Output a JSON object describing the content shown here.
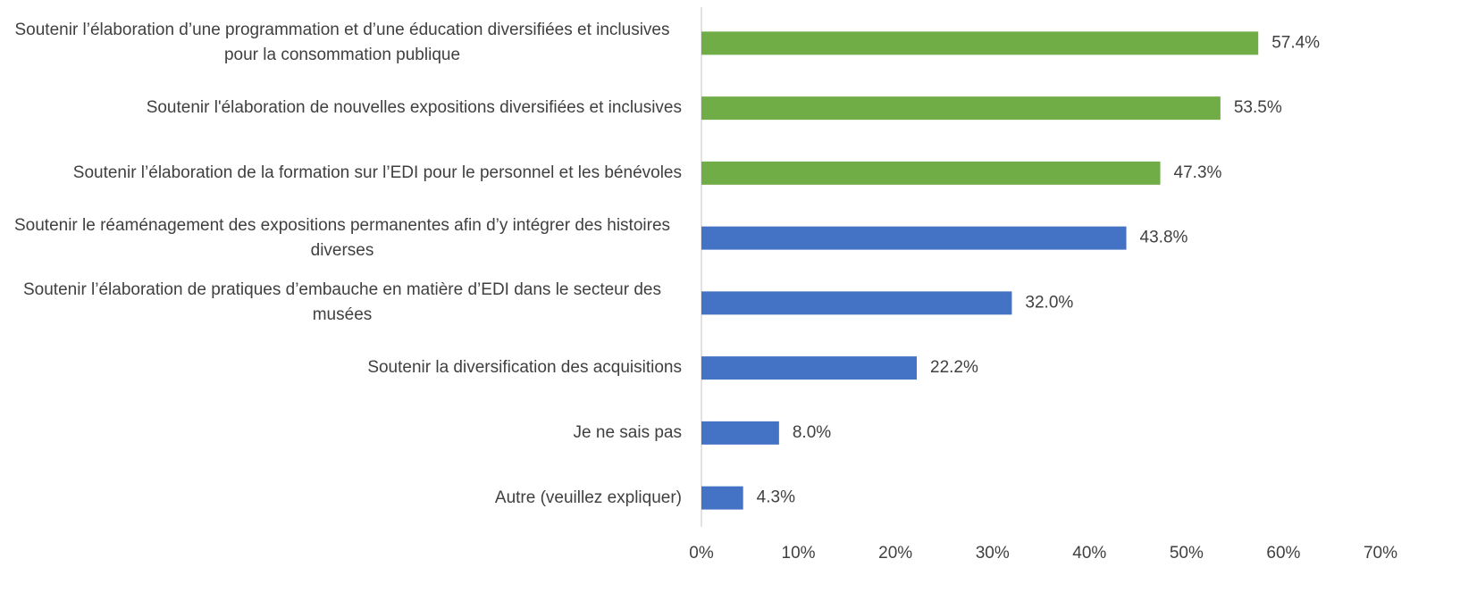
{
  "chart_data": {
    "type": "bar",
    "orientation": "horizontal",
    "categories": [
      "Soutenir l’élaboration d’une programmation et d’une éducation diversifiées et inclusives pour la consommation publique",
      "Soutenir l'élaboration de nouvelles expositions diversifiées et inclusives",
      "Soutenir l’élaboration de la formation sur l’EDI pour le personnel et les bénévoles",
      "Soutenir le réaménagement des expositions permanentes afin d’y intégrer des histoires diverses",
      "Soutenir l’élaboration de pratiques d’embauche en matière d’EDI dans le secteur des musées",
      "Soutenir la diversification des acquisitions",
      "Je ne sais pas",
      "Autre (veuillez expliquer)"
    ],
    "values": [
      57.4,
      53.5,
      47.3,
      43.8,
      32.0,
      22.2,
      8.0,
      4.3
    ],
    "value_labels": [
      "57.4%",
      "53.5%",
      "47.3%",
      "43.8%",
      "32.0%",
      "22.2%",
      "8.0%",
      "4.3%"
    ],
    "colors": [
      "#70ad47",
      "#70ad47",
      "#70ad47",
      "#4472c4",
      "#4472c4",
      "#4472c4",
      "#4472c4",
      "#4472c4"
    ],
    "xlim": [
      0,
      70
    ],
    "xticks": [
      {
        "value": 0,
        "label": "0%"
      },
      {
        "value": 10,
        "label": "10%"
      },
      {
        "value": 20,
        "label": "20%"
      },
      {
        "value": 30,
        "label": "30%"
      },
      {
        "value": 40,
        "label": "40%"
      },
      {
        "value": 50,
        "label": "50%"
      },
      {
        "value": 60,
        "label": "60%"
      },
      {
        "value": 70,
        "label": "70%"
      }
    ],
    "grid": false
  }
}
